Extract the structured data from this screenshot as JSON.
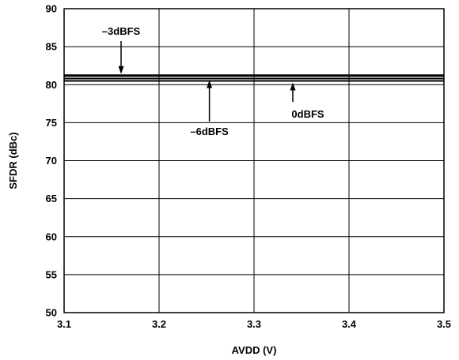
{
  "chart_data": {
    "type": "line",
    "xlabel": "AVDD (V)",
    "ylabel": "SFDR (dBc)",
    "xlim": [
      3.1,
      3.5
    ],
    "ylim": [
      50,
      90
    ],
    "xticks": [
      "3.1",
      "3.2",
      "3.3",
      "3.4",
      "3.5"
    ],
    "yticks": [
      "50",
      "55",
      "60",
      "65",
      "70",
      "75",
      "80",
      "85",
      "90"
    ],
    "grid": true,
    "series": [
      {
        "name": "–3dBFS",
        "x": [
          3.1,
          3.5
        ],
        "y": [
          81.2,
          81.2
        ]
      },
      {
        "name": "–6dBFS",
        "x": [
          3.1,
          3.5
        ],
        "y": [
          80.8,
          80.8
        ]
      },
      {
        "name": "0dBFS",
        "x": [
          3.1,
          3.5
        ],
        "y": [
          80.5,
          80.5
        ]
      }
    ],
    "annotations": [
      {
        "text": "–3dBFS",
        "target_series": 0,
        "target_x": 3.16
      },
      {
        "text": "–6dBFS",
        "target_series": 1,
        "target_x": 3.253
      },
      {
        "text": "0dBFS",
        "target_series": 2,
        "target_x": 3.335
      }
    ]
  }
}
